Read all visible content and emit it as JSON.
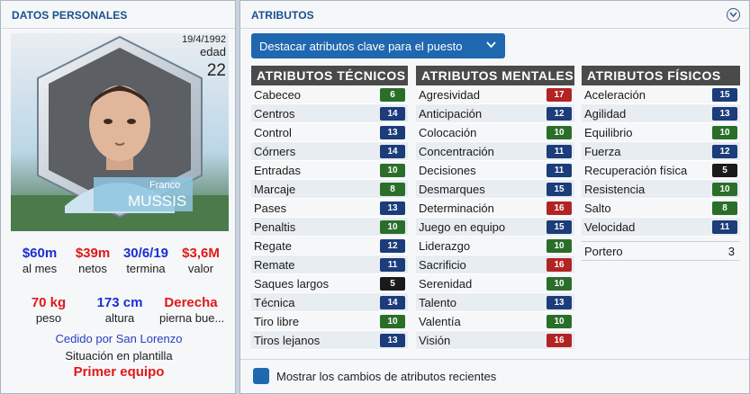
{
  "personal": {
    "title": "DATOS PERSONALES",
    "dob": "19/4/1992",
    "age_label": "edad",
    "age": "22",
    "player_first_name": "Franco",
    "player_last_name": "MUSSIS",
    "stats": [
      {
        "value": "$60m",
        "label": "al mes",
        "color": "blue"
      },
      {
        "value": "$39m",
        "label": "netos",
        "color": "red"
      },
      {
        "value": "30/6/19",
        "label": "termina",
        "color": "blue"
      },
      {
        "value": "$3,6M",
        "label": "valor",
        "color": "red"
      }
    ],
    "physical": [
      {
        "value": "70 kg",
        "label": "peso",
        "color": "red"
      },
      {
        "value": "173 cm",
        "label": "altura",
        "color": "blue"
      },
      {
        "value": "Derecha",
        "label": "pierna bue...",
        "color": "red"
      }
    ],
    "loan": "Cedido por San Lorenzo",
    "squad_label": "Situación en plantilla",
    "squad_value": "Primer equipo"
  },
  "attributes": {
    "title": "ATRIBUTOS",
    "highlight_label": "Destacar atributos clave para el puesto",
    "technical": {
      "header": "ATRIBUTOS TÉCNICOS",
      "items": [
        {
          "name": "Cabeceo",
          "value": "6",
          "color": "green"
        },
        {
          "name": "Centros",
          "value": "14",
          "color": "navy"
        },
        {
          "name": "Control",
          "value": "13",
          "color": "navy"
        },
        {
          "name": "Córners",
          "value": "14",
          "color": "navy"
        },
        {
          "name": "Entradas",
          "value": "10",
          "color": "green"
        },
        {
          "name": "Marcaje",
          "value": "8",
          "color": "green"
        },
        {
          "name": "Pases",
          "value": "13",
          "color": "navy"
        },
        {
          "name": "Penaltis",
          "value": "10",
          "color": "green"
        },
        {
          "name": "Regate",
          "value": "12",
          "color": "navy"
        },
        {
          "name": "Remate",
          "value": "11",
          "color": "navy"
        },
        {
          "name": "Saques largos",
          "value": "5",
          "color": "black"
        },
        {
          "name": "Técnica",
          "value": "14",
          "color": "navy"
        },
        {
          "name": "Tiro libre",
          "value": "10",
          "color": "green"
        },
        {
          "name": "Tiros lejanos",
          "value": "13",
          "color": "navy"
        }
      ]
    },
    "mental": {
      "header": "ATRIBUTOS MENTALES",
      "items": [
        {
          "name": "Agresividad",
          "value": "17",
          "color": "red"
        },
        {
          "name": "Anticipación",
          "value": "12",
          "color": "navy"
        },
        {
          "name": "Colocación",
          "value": "10",
          "color": "green"
        },
        {
          "name": "Concentración",
          "value": "11",
          "color": "navy"
        },
        {
          "name": "Decisiones",
          "value": "11",
          "color": "navy"
        },
        {
          "name": "Desmarques",
          "value": "15",
          "color": "navy"
        },
        {
          "name": "Determinación",
          "value": "16",
          "color": "red"
        },
        {
          "name": "Juego en equipo",
          "value": "15",
          "color": "navy"
        },
        {
          "name": "Liderazgo",
          "value": "10",
          "color": "green"
        },
        {
          "name": "Sacrificio",
          "value": "16",
          "color": "red"
        },
        {
          "name": "Serenidad",
          "value": "10",
          "color": "green"
        },
        {
          "name": "Talento",
          "value": "13",
          "color": "navy"
        },
        {
          "name": "Valentía",
          "value": "10",
          "color": "green"
        },
        {
          "name": "Visión",
          "value": "16",
          "color": "red"
        }
      ]
    },
    "physical": {
      "header": "ATRIBUTOS FÍSICOS",
      "items": [
        {
          "name": "Aceleración",
          "value": "15",
          "color": "navy"
        },
        {
          "name": "Agilidad",
          "value": "13",
          "color": "navy"
        },
        {
          "name": "Equilibrio",
          "value": "10",
          "color": "green"
        },
        {
          "name": "Fuerza",
          "value": "12",
          "color": "navy"
        },
        {
          "name": "Recuperación física",
          "value": "5",
          "color": "black"
        },
        {
          "name": "Resistencia",
          "value": "10",
          "color": "green"
        },
        {
          "name": "Salto",
          "value": "8",
          "color": "green"
        },
        {
          "name": "Velocidad",
          "value": "11",
          "color": "navy"
        }
      ],
      "goalkeeper_label": "Portero",
      "goalkeeper_value": "3"
    },
    "recent_changes_label": "Mostrar los cambios de atributos recientes"
  }
}
